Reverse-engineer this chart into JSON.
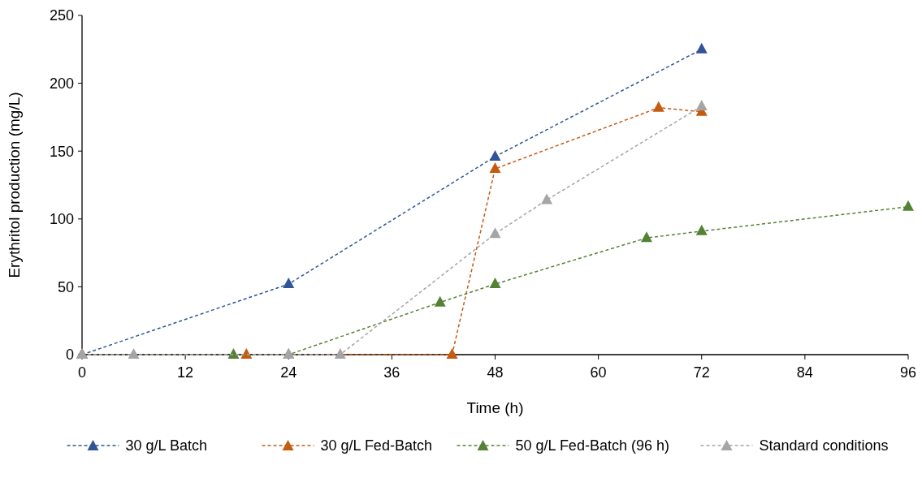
{
  "chart_data": {
    "type": "line",
    "xlabel": "Time (h)",
    "ylabel": "Erythritol production (mg/L)",
    "xlim": [
      0,
      96
    ],
    "xticks": [
      0,
      12,
      24,
      36,
      48,
      60,
      72,
      84,
      96
    ],
    "ylim": [
      0,
      250
    ],
    "yticks": [
      0,
      50,
      100,
      150,
      200,
      250
    ],
    "grid": false,
    "legend": "bottom",
    "marker": "triangle",
    "line_style": "dashed",
    "series": [
      {
        "name": "30 g/L Batch",
        "color": "#2f5597",
        "x": [
          0,
          24,
          48,
          72
        ],
        "values": [
          0,
          52,
          146,
          225
        ]
      },
      {
        "name": "30 g/L Fed-Batch",
        "color": "#c55a11",
        "x": [
          0,
          19.1,
          43,
          48,
          67,
          72
        ],
        "values": [
          0,
          0,
          0,
          137,
          182,
          179
        ]
      },
      {
        "name": "50 g/L Fed-Batch (96 h)",
        "color": "#548235",
        "x": [
          0,
          17.6,
          24,
          41.6,
          48,
          65.6,
          72,
          96
        ],
        "values": [
          0,
          0,
          0,
          38.5,
          52,
          86,
          91,
          109
        ]
      },
      {
        "name": "Standard conditions",
        "color": "#a5a5a5",
        "x": [
          0,
          6,
          24,
          30,
          48,
          54,
          72
        ],
        "values": [
          0,
          0,
          0,
          0,
          89,
          114,
          183
        ]
      }
    ]
  }
}
